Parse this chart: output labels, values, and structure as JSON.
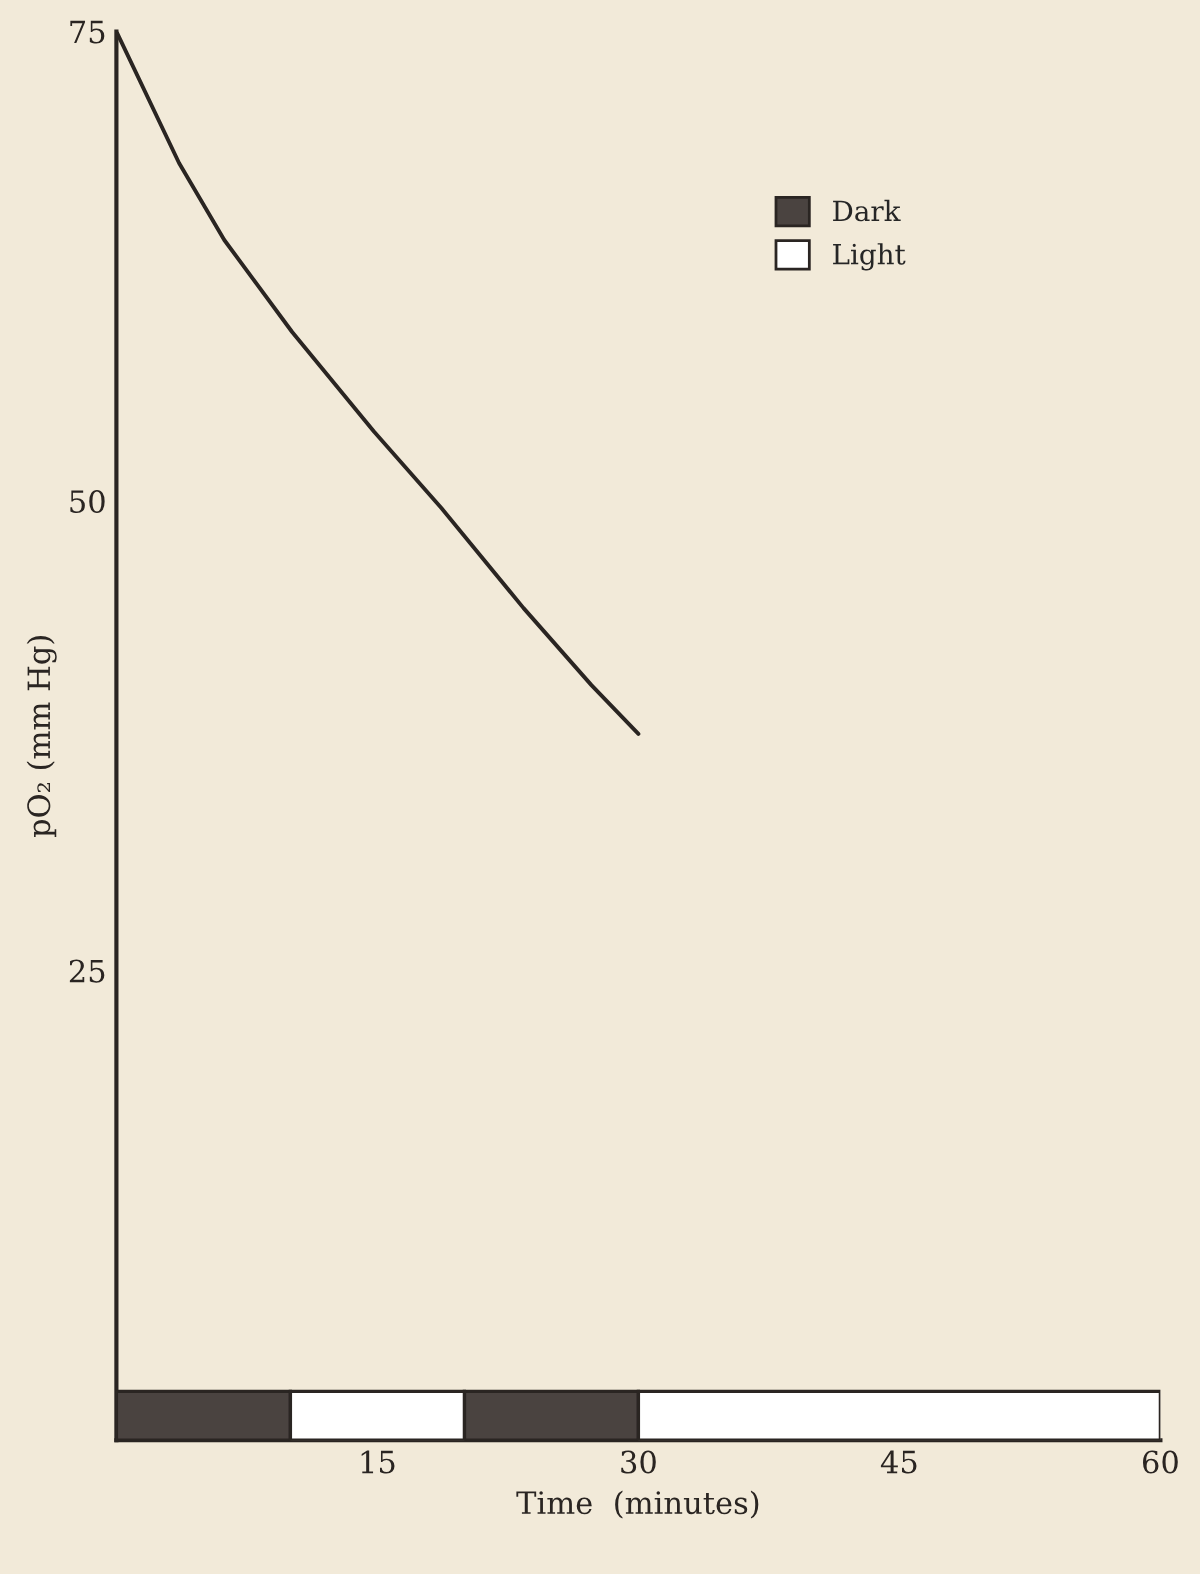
{
  "chart_data": {
    "type": "line",
    "xlabel": "Time  (minutes)",
    "ylabel": "pO₂ (mm Hg)",
    "x": [
      0,
      3.6,
      6.2,
      10.1,
      14.8,
      18.7,
      23.4,
      27.3,
      30
    ],
    "series": [
      {
        "color": "#2a2522",
        "values": [
          75,
          68,
          63.9,
          59,
          53.7,
          49.6,
          44.3,
          40.2,
          37.6
        ]
      },
      {
        "type": "histogram",
        "name": "Dark",
        "color": "#4a4340",
        "bins": [
          0,
          10,
          20,
          30
        ],
        "values": [
          2.6,
          null,
          2.6
        ]
      },
      {
        "type": "histogram",
        "name": "Light",
        "color": "#ffffff",
        "bins": [
          10,
          20,
          30,
          60
        ],
        "values": [
          2.6,
          null,
          2.6
        ]
      }
    ],
    "xlim": [
      0,
      60
    ],
    "xticks": [
      15,
      30,
      45,
      60
    ],
    "ylim": [
      0,
      75
    ],
    "yticks": [
      25,
      50,
      75
    ],
    "legend": "top right",
    "grid": false,
    "marker": "none",
    "line_style": "solid"
  }
}
